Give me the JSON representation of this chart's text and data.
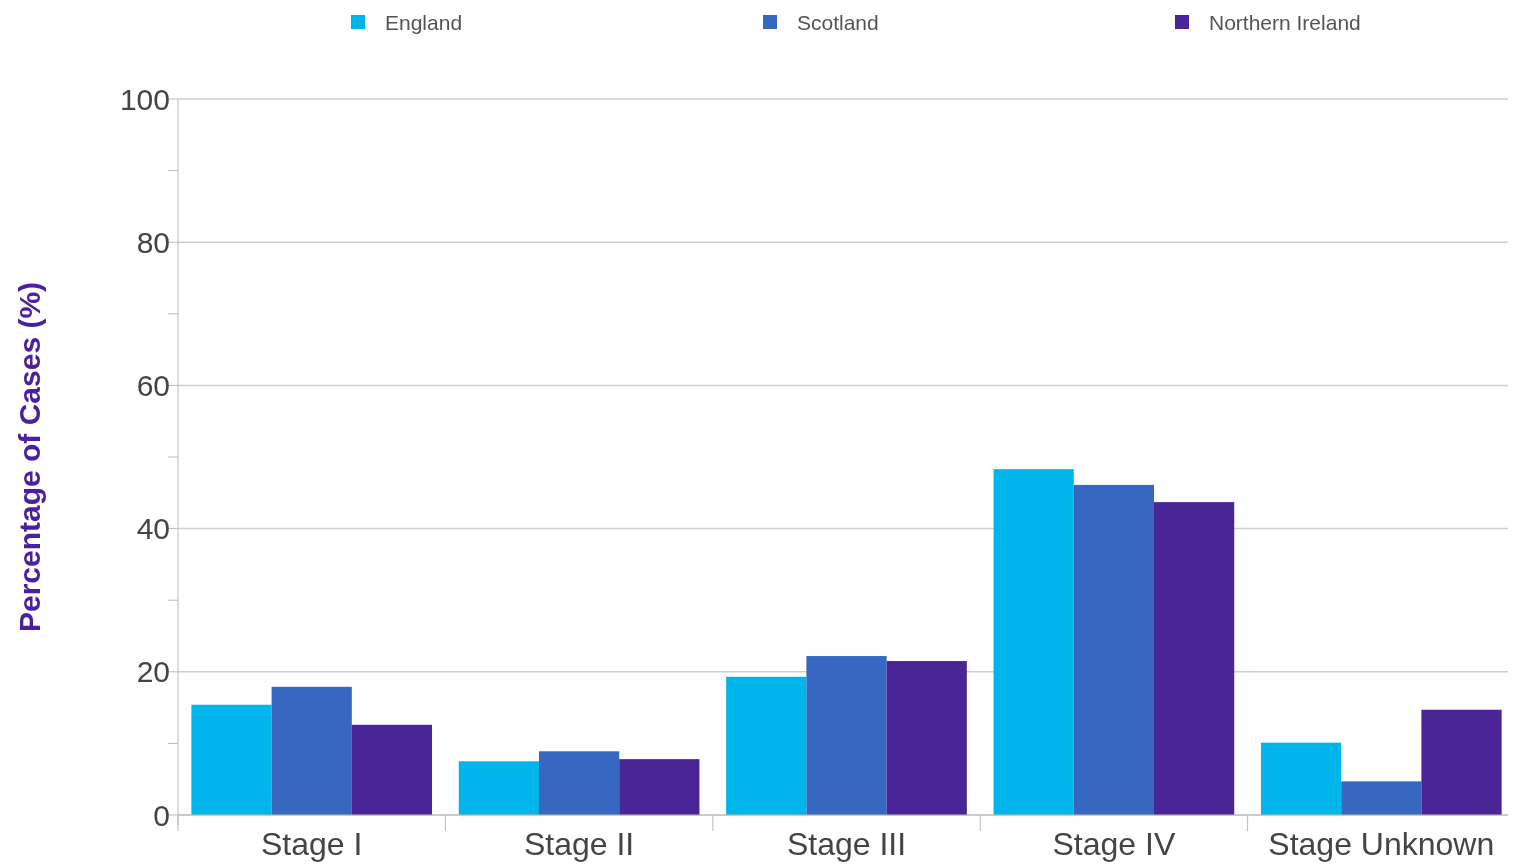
{
  "chart_data": {
    "type": "bar",
    "ylabel": "Percentage of Cases (%)",
    "categories": [
      "Stage I",
      "Stage II",
      "Stage III",
      "Stage IV",
      "Stage Unknown"
    ],
    "series": [
      {
        "name": "England",
        "color": "#00b5ea",
        "values": [
          15.4,
          7.5,
          19.3,
          48.3,
          10.1
        ]
      },
      {
        "name": "Scotland",
        "color": "#3668c2",
        "values": [
          17.9,
          8.9,
          22.2,
          46.1,
          4.7
        ]
      },
      {
        "name": "Northern Ireland",
        "color": "#4a2595",
        "values": [
          12.6,
          7.8,
          21.5,
          43.7,
          14.7
        ]
      }
    ],
    "ylim": [
      0,
      100
    ],
    "yticks": [
      0,
      {
        "value": 10,
        "label": null
      },
      20,
      {
        "value": 30,
        "label": null
      },
      40,
      {
        "value": 50,
        "label": null
      },
      60,
      {
        "value": 70,
        "label": null
      },
      80,
      {
        "value": 90,
        "label": null
      },
      100
    ],
    "grid": "y",
    "legend": "top"
  }
}
